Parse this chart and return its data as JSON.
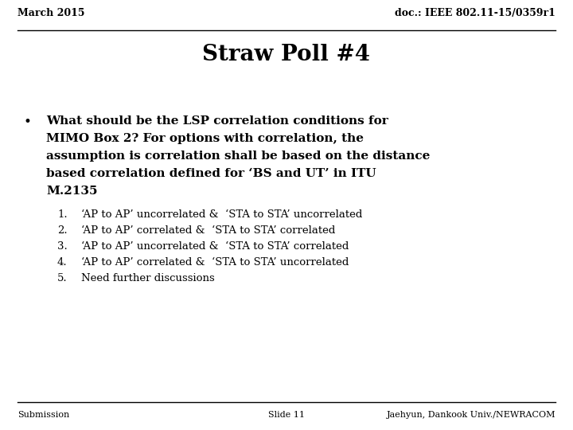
{
  "top_left": "March 2015",
  "top_right": "doc.: IEEE 802.11-15/0359r1",
  "title": "Straw Poll #4",
  "bullet_text_lines": [
    "What should be the LSP correlation conditions for",
    "MIMO Box 2? For options with correlation, the",
    "assumption is correlation shall be based on the distance",
    "based correlation defined for ‘BS and UT’ in ITU",
    "M.2135"
  ],
  "numbered_items": [
    "‘AP to AP’ uncorrelated &  ‘STA to STA’ uncorrelated",
    "‘AP to AP’ correlated &  ‘STA to STA’ correlated",
    "‘AP to AP’ uncorrelated &  ‘STA to STA’ correlated",
    "‘AP to AP’ correlated &  ‘STA to STA’ uncorrelated",
    "Need further discussions"
  ],
  "footer_left": "Submission",
  "footer_center": "Slide 11",
  "footer_right": "Jaehyun, Dankook Univ./NEWRACOM",
  "bg_color": "#ffffff",
  "text_color": "#000000"
}
